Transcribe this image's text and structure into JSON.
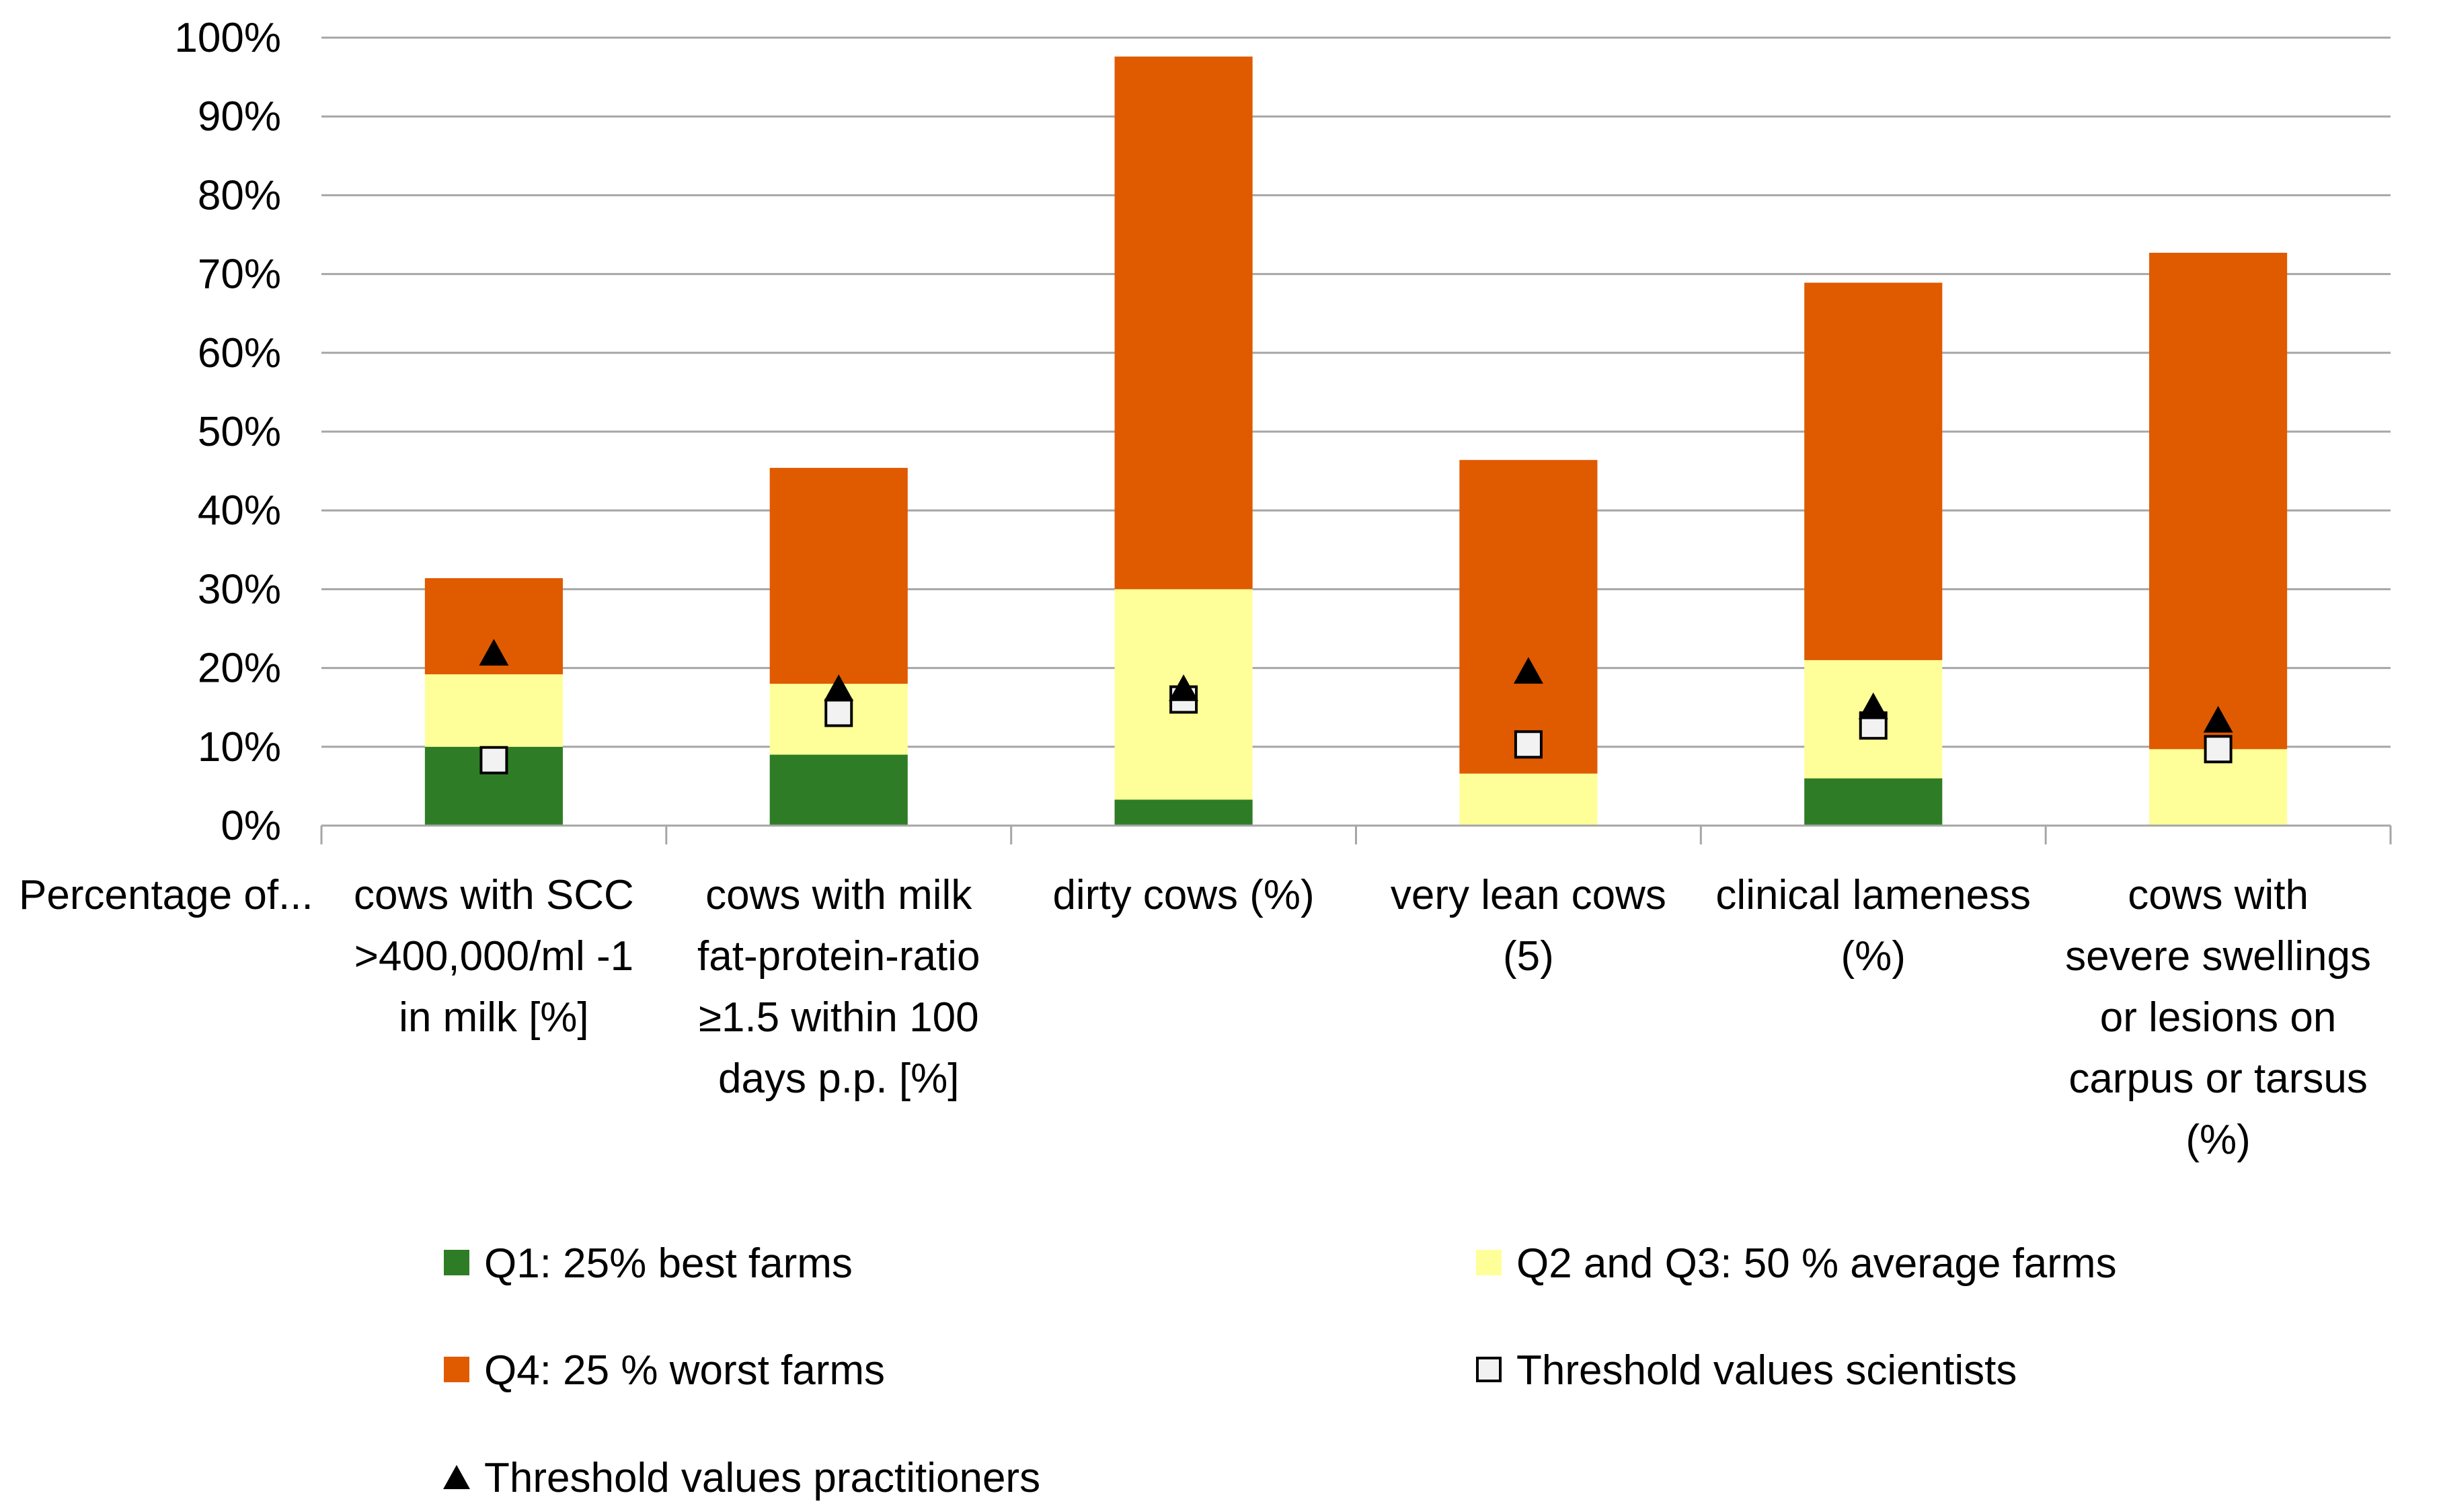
{
  "chart_data": {
    "type": "bar",
    "stacked": true,
    "axis_prefix_label": "Percentage of...",
    "categories": [
      [
        "cows with SCC",
        ">400,000/ml -1",
        "in milk [%]"
      ],
      [
        "cows with milk",
        "fat-protein-ratio",
        "≥1.5 within 100",
        "days p.p. [%]"
      ],
      [
        "dirty cows (%)"
      ],
      [
        "very lean cows",
        "(5)"
      ],
      [
        "clinical lameness",
        "(%)"
      ],
      [
        "cows with",
        "severe swellings",
        "or lesions on",
        "carpus or tarsus",
        "(%)"
      ]
    ],
    "series": [
      {
        "name": "Q1: 25% best farms",
        "color": "#2e7d26",
        "values": [
          10,
          9,
          3.3,
          0,
          6,
          0
        ]
      },
      {
        "name": "Q2 and Q3: 50 % average farms",
        "color": "#ffff99",
        "values": [
          9.2,
          9,
          26.7,
          6.6,
          15,
          9.7
        ]
      },
      {
        "name": "Q4: 25 % worst farms",
        "color": "#e05a00",
        "values": [
          12.2,
          27.4,
          67.6,
          39.8,
          47.9,
          63
        ]
      }
    ],
    "markers": [
      {
        "name": "Threshold values scientists",
        "shape": "square",
        "values": [
          8.3,
          14.3,
          16,
          10.3,
          12.7,
          9.7
        ]
      },
      {
        "name": "Threshold values practitioners",
        "shape": "triangle",
        "values": [
          22,
          17.5,
          17.5,
          19.7,
          15.2,
          13.5
        ]
      }
    ],
    "yticks": [
      "0%",
      "10%",
      "20%",
      "30%",
      "40%",
      "50%",
      "60%",
      "70%",
      "80%",
      "90%",
      "100%"
    ],
    "ylim": [
      0,
      100
    ],
    "grid": true,
    "legend": {
      "placement": "bottom",
      "items": [
        "Q1: 25% best farms",
        "Q2 and Q3: 50 % average farms",
        "Q4: 25 % worst farms",
        "Threshold values scientists",
        "Threshold values practitioners"
      ]
    }
  }
}
